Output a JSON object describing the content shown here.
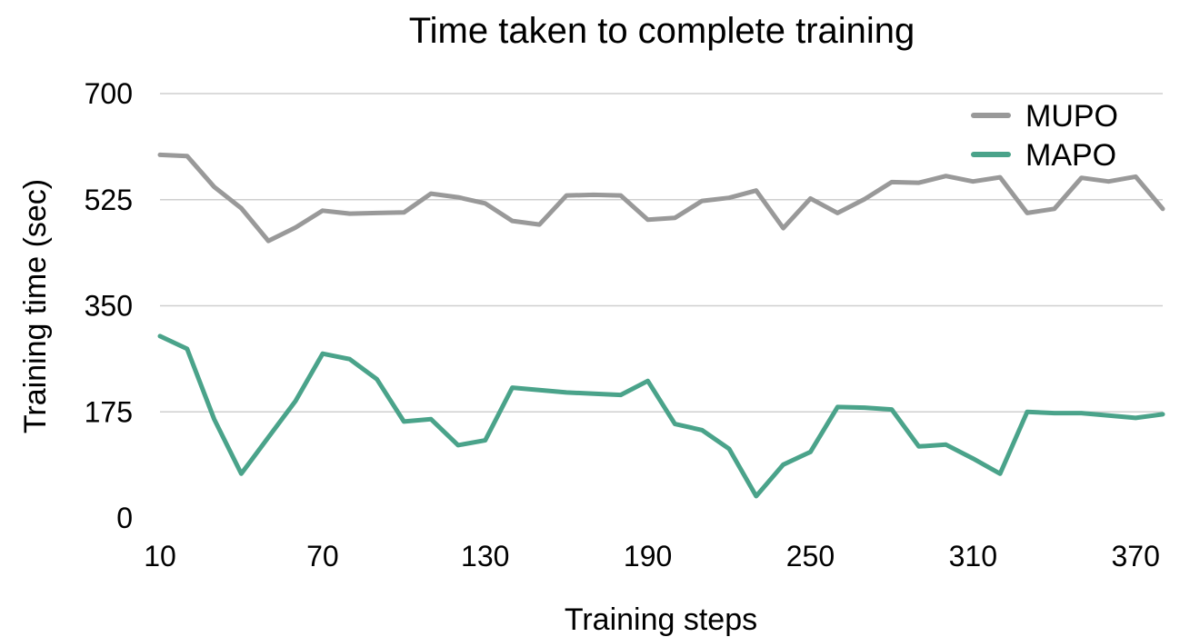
{
  "chart_data": {
    "type": "line",
    "title": "Time taken to complete training",
    "xlabel": "Training steps",
    "ylabel": "Training time (sec)",
    "xlim": [
      10,
      380
    ],
    "ylim": [
      0,
      700
    ],
    "xticks": [
      10,
      70,
      130,
      190,
      250,
      310,
      370
    ],
    "yticks": [
      0,
      175,
      350,
      525,
      700
    ],
    "grid": "horizontal",
    "legend_position": "top-right",
    "x": [
      10,
      20,
      30,
      40,
      50,
      60,
      70,
      80,
      90,
      100,
      110,
      120,
      130,
      140,
      150,
      160,
      170,
      180,
      190,
      200,
      210,
      220,
      230,
      240,
      250,
      260,
      270,
      280,
      290,
      300,
      310,
      320,
      330,
      340,
      350,
      360,
      370,
      380
    ],
    "series": [
      {
        "name": "MUPO",
        "color": "#999999",
        "values": [
          599,
          597,
          546,
          511,
          457,
          479,
          507,
          502,
          503,
          504,
          535,
          529,
          519,
          490,
          484,
          532,
          533,
          532,
          492,
          495,
          523,
          528,
          540,
          478,
          527,
          503,
          526,
          554,
          553,
          564,
          555,
          562,
          503,
          510,
          561,
          555,
          563,
          510
        ]
      },
      {
        "name": "MAPO",
        "color": "#4aa38a",
        "values": [
          300,
          279,
          163,
          73,
          133,
          193,
          271,
          262,
          229,
          159,
          163,
          120,
          128,
          215,
          211,
          207,
          205,
          203,
          226,
          155,
          145,
          114,
          36,
          88,
          109,
          183,
          182,
          179,
          118,
          121,
          98,
          73,
          175,
          173,
          173,
          169,
          165,
          171
        ]
      }
    ]
  }
}
